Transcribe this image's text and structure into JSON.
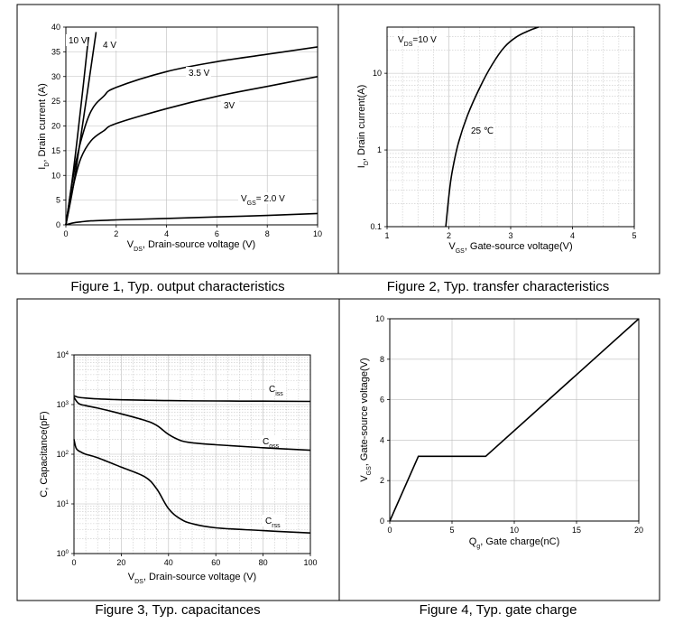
{
  "charts": [
    {
      "id": "fig1",
      "type": "line",
      "caption": "Figure 1, Typ. output characteristics",
      "xlabel": "V_DS, Drain-source voltage (V)",
      "ylabel": "I_D, Drain current (A)",
      "xlim": [
        0,
        10
      ],
      "ylim": [
        0,
        40
      ],
      "xticks": [
        0,
        2,
        4,
        6,
        8,
        10
      ],
      "yticks": [
        0,
        5,
        10,
        15,
        20,
        25,
        30,
        35,
        40
      ],
      "grid": true,
      "series": [
        {
          "name": "10 V",
          "x": [
            0,
            0.3,
            0.6,
            0.9
          ],
          "y": [
            0,
            11,
            24,
            38
          ]
        },
        {
          "name": "4 V",
          "x": [
            0,
            0.3,
            0.6,
            1.2
          ],
          "y": [
            0,
            8,
            18,
            39
          ]
        },
        {
          "name": "3.5 V",
          "x": [
            0,
            0.3,
            0.6,
            1,
            1.5,
            2,
            4,
            6,
            8,
            10
          ],
          "y": [
            0,
            10,
            17,
            23,
            26,
            27.8,
            31,
            33,
            34.5,
            36
          ]
        },
        {
          "name": "3V",
          "x": [
            0,
            0.3,
            0.6,
            1,
            1.5,
            2,
            4,
            6,
            8,
            10
          ],
          "y": [
            0,
            8,
            13.5,
            17,
            19,
            20.5,
            23.5,
            26,
            28,
            30
          ]
        },
        {
          "name": "V_GS= 2.0 V",
          "x": [
            0,
            0.3,
            0.6,
            1,
            2,
            4,
            6,
            8,
            10
          ],
          "y": [
            0,
            0.4,
            0.6,
            0.8,
            1,
            1.3,
            1.6,
            1.9,
            2.3
          ]
        }
      ]
    },
    {
      "id": "fig2",
      "type": "line",
      "caption": "Figure 2, Typ. transfer characteristics",
      "xlabel": "V_GS, Gate-source voltage(V)",
      "ylabel": "I_D, Drain current(A)",
      "xlim": [
        1,
        5
      ],
      "ylim": [
        0.1,
        40
      ],
      "yscale": "log",
      "xticks": [
        1,
        2,
        3,
        4,
        5
      ],
      "yticks": [
        0.1,
        1,
        10
      ],
      "grid": true,
      "annotations": [
        "V_DS=10 V",
        "25 ℃"
      ],
      "series": [
        {
          "name": "25 ℃",
          "x": [
            1.95,
            2.0,
            2.05,
            2.15,
            2.3,
            2.5,
            2.7,
            2.9,
            3.1,
            3.3,
            3.45
          ],
          "y": [
            0.1,
            0.25,
            0.5,
            1.2,
            2.8,
            6.5,
            13,
            22,
            30,
            36,
            40
          ]
        }
      ]
    },
    {
      "id": "fig3",
      "type": "line",
      "caption": "Figure 3, Typ. capacitances",
      "xlabel": "V_DS, Drain-source voltage (V)",
      "ylabel": "C, Capacitance(pF)",
      "xlim": [
        0,
        100
      ],
      "ylim": [
        1,
        10000
      ],
      "yscale": "log",
      "xticks": [
        0,
        20,
        40,
        60,
        80,
        100
      ],
      "yticks": [
        1,
        10,
        100,
        1000,
        10000
      ],
      "grid": true,
      "series": [
        {
          "name": "C_iss",
          "x": [
            0,
            2,
            5,
            10,
            20,
            40,
            60,
            80,
            100
          ],
          "y": [
            1500,
            1400,
            1350,
            1300,
            1250,
            1200,
            1180,
            1170,
            1160
          ]
        },
        {
          "name": "C_oss",
          "x": [
            0,
            2,
            5,
            10,
            20,
            30,
            35,
            40,
            45,
            50,
            60,
            80,
            100
          ],
          "y": [
            1400,
            1050,
            950,
            850,
            650,
            480,
            380,
            250,
            190,
            170,
            155,
            135,
            120
          ]
        },
        {
          "name": "C_rss",
          "x": [
            0,
            1,
            3,
            5,
            10,
            20,
            30,
            35,
            40,
            45,
            50,
            60,
            80,
            100
          ],
          "y": [
            200,
            130,
            110,
            100,
            85,
            55,
            35,
            20,
            8,
            5,
            4,
            3.3,
            2.9,
            2.6
          ]
        }
      ]
    },
    {
      "id": "fig4",
      "type": "line",
      "caption": "Figure 4, Typ. gate charge",
      "xlabel": "Q_g, Gate charge(nC)",
      "ylabel": "V_GS, Gate-source voltage(V)",
      "xlim": [
        0,
        20
      ],
      "ylim": [
        0,
        10
      ],
      "xticks": [
        0,
        5,
        10,
        15,
        20
      ],
      "yticks": [
        0,
        2,
        4,
        6,
        8,
        10
      ],
      "grid": true,
      "series": [
        {
          "name": "V_GS",
          "x": [
            0,
            2.3,
            7.7,
            20
          ],
          "y": [
            0,
            3.2,
            3.2,
            10
          ]
        }
      ]
    }
  ]
}
